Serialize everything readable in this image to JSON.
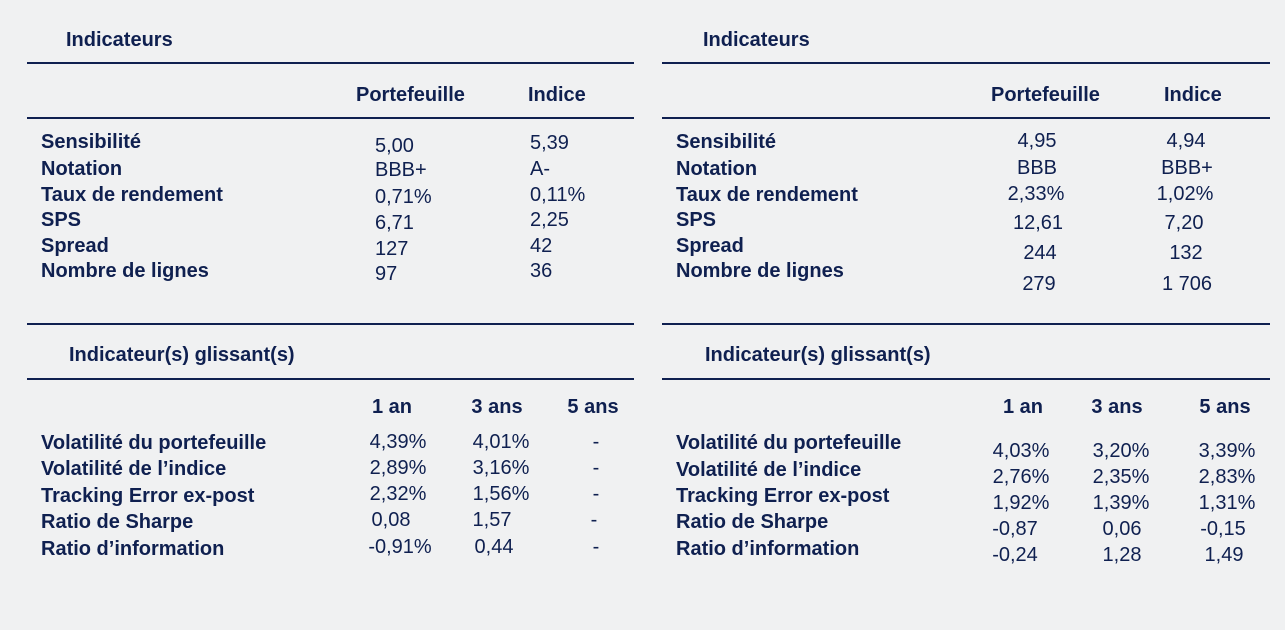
{
  "left": {
    "title": "Indicateurs",
    "headers": {
      "portfolio": "Portefeuille",
      "index": "Indice"
    },
    "metrics": [
      {
        "label": "Sensibilité",
        "portfolio": "5,00",
        "index": "5,39"
      },
      {
        "label": "Notation",
        "portfolio": "BBB+",
        "index": "A-"
      },
      {
        "label": "Taux de rendement",
        "portfolio": "0,71%",
        "index": "0,11%"
      },
      {
        "label": "SPS",
        "portfolio": "6,71",
        "index": "2,25"
      },
      {
        "label": "Spread",
        "portfolio": "127",
        "index": "42"
      },
      {
        "label": "Nombre de lignes",
        "portfolio": "97",
        "index": "36"
      }
    ],
    "rolling_title": "Indicateur(s) glissant(s)",
    "rolling_headers": {
      "y1": "1 an",
      "y3": "3 ans",
      "y5": "5 ans"
    },
    "rolling": [
      {
        "label": "Volatilité du portefeuille",
        "y1": "4,39%",
        "y3": "4,01%",
        "y5": "-"
      },
      {
        "label": "Volatilité de l’indice",
        "y1": "2,89%",
        "y3": "3,16%",
        "y5": "-"
      },
      {
        "label": "Tracking Error ex-post",
        "y1": "2,32%",
        "y3": "1,56%",
        "y5": "-"
      },
      {
        "label": "Ratio de Sharpe",
        "y1": "0,08",
        "y3": "1,57",
        "y5": "-"
      },
      {
        "label": "Ratio d’information",
        "y1": "-0,91%",
        "y3": "0,44",
        "y5": "-"
      }
    ]
  },
  "right": {
    "title": "Indicateurs",
    "headers": {
      "portfolio": "Portefeuille",
      "index": "Indice"
    },
    "metrics": [
      {
        "label": "Sensibilité",
        "portfolio": "4,95",
        "index": "4,94"
      },
      {
        "label": "Notation",
        "portfolio": "BBB",
        "index": "BBB+"
      },
      {
        "label": "Taux de rendement",
        "portfolio": "2,33%",
        "index": "1,02%"
      },
      {
        "label": "SPS",
        "portfolio": "12,61",
        "index": "7,20"
      },
      {
        "label": "Spread",
        "portfolio": "244",
        "index": "132"
      },
      {
        "label": "Nombre de lignes",
        "portfolio": "279",
        "index": "1 706"
      }
    ],
    "rolling_title": "Indicateur(s) glissant(s)",
    "rolling_headers": {
      "y1": "1 an",
      "y3": "3 ans",
      "y5": "5 ans"
    },
    "rolling": [
      {
        "label": "Volatilité du portefeuille",
        "y1": "4,03%",
        "y3": "3,20%",
        "y5": "3,39%"
      },
      {
        "label": "Volatilité de l’indice",
        "y1": "2,76%",
        "y3": "2,35%",
        "y5": "2,83%"
      },
      {
        "label": "Tracking Error ex-post",
        "y1": "1,92%",
        "y3": "1,39%",
        "y5": "1,31%"
      },
      {
        "label": "Ratio de Sharpe",
        "y1": "-0,87",
        "y3": "0,06",
        "y5": "-0,15"
      },
      {
        "label": "Ratio d’information",
        "y1": "-0,24",
        "y3": "1,28",
        "y5": "1,49"
      }
    ]
  }
}
